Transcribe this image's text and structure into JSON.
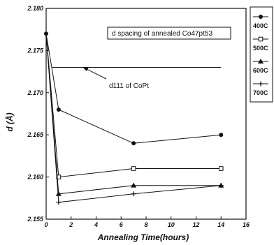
{
  "chart_data": {
    "type": "line",
    "title": "",
    "xlabel": "Annealing Time(hours)",
    "ylabel": "d (Å)",
    "xlim": [
      0,
      16
    ],
    "ylim": [
      2.155,
      2.18
    ],
    "xticks": [
      "0",
      "2",
      "4",
      "6",
      "8",
      "10",
      "12",
      "14",
      "16"
    ],
    "yticks": [
      "2.155",
      "2.160",
      "2.165",
      "2.170",
      "2.175",
      "2.180"
    ],
    "grid": false,
    "legend_position": "right",
    "series": [
      {
        "name": "400C",
        "marker": "filled-circle",
        "x": [
          0,
          1,
          7,
          14
        ],
        "y": [
          2.177,
          2.168,
          2.164,
          2.165
        ]
      },
      {
        "name": "500C",
        "marker": "open-square",
        "x": [
          0,
          1,
          7,
          14
        ],
        "y": [
          2.177,
          2.16,
          2.161,
          2.161
        ]
      },
      {
        "name": "600C",
        "marker": "filled-triangle",
        "x": [
          0,
          1,
          7,
          14
        ],
        "y": [
          2.177,
          2.158,
          2.159,
          2.159
        ]
      },
      {
        "name": "700C",
        "marker": "plus",
        "x": [
          0,
          1,
          7,
          14
        ],
        "y": [
          2.177,
          2.157,
          2.158,
          2.159
        ]
      }
    ],
    "reference_line": {
      "label": "d111 of CoPt",
      "y": 2.173
    },
    "annotations": [
      {
        "text": "d spacing of annealed Co47pt53"
      }
    ]
  }
}
